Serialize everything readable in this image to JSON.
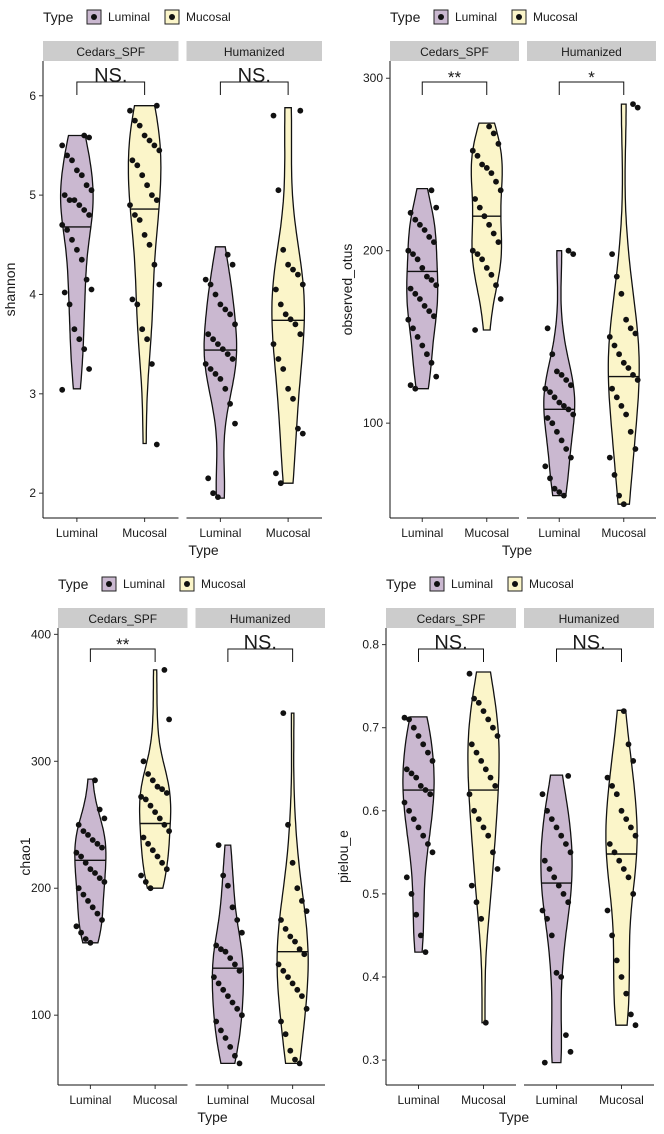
{
  "legend_title": "Type",
  "legend_items": [
    {
      "label": "Luminal",
      "color": "#cab8d0"
    },
    {
      "label": "Mucosal",
      "color": "#fbf5c9"
    }
  ],
  "x_axis_title": "Type",
  "panel_background": "#cccccc",
  "chart_data": [
    {
      "type": "violin",
      "ylabel": "shannon",
      "xlabel": "Type",
      "ylim": [
        1.75,
        6.35
      ],
      "yticks": [
        2,
        3,
        4,
        5,
        6
      ],
      "facets": [
        {
          "name": "Cedars_SPF",
          "annotation": "NS.",
          "groups": [
            {
              "category": "Luminal",
              "median": 4.68,
              "min": 3.05,
              "max": 5.6,
              "points": [
                3.04,
                3.25,
                3.45,
                3.55,
                3.65,
                3.9,
                4.02,
                4.05,
                4.15,
                4.35,
                4.45,
                4.55,
                4.65,
                4.7,
                4.8,
                4.85,
                4.9,
                4.95,
                4.95,
                5.0,
                5.05,
                5.1,
                5.2,
                5.25,
                5.35,
                5.4,
                5.5,
                5.58,
                5.6
              ]
            },
            {
              "category": "Mucosal",
              "median": 4.86,
              "min": 2.5,
              "max": 5.9,
              "points": [
                2.49,
                3.3,
                3.55,
                3.65,
                3.9,
                3.95,
                4.1,
                4.3,
                4.5,
                4.6,
                4.75,
                4.8,
                4.9,
                4.95,
                5.0,
                5.1,
                5.2,
                5.3,
                5.35,
                5.45,
                5.5,
                5.55,
                5.6,
                5.7,
                5.75,
                5.85,
                5.9
              ]
            }
          ]
        },
        {
          "name": "Humanized",
          "annotation": "NS.",
          "groups": [
            {
              "category": "Luminal",
              "median": 3.44,
              "min": 1.95,
              "max": 4.48,
              "points": [
                1.96,
                2.0,
                2.15,
                2.7,
                2.9,
                3.05,
                3.15,
                3.2,
                3.25,
                3.3,
                3.35,
                3.4,
                3.45,
                3.5,
                3.55,
                3.6,
                3.7,
                3.8,
                3.85,
                3.9,
                4.0,
                4.1,
                4.15,
                4.3,
                4.4
              ]
            },
            {
              "category": "Mucosal",
              "median": 3.74,
              "min": 2.1,
              "max": 5.88,
              "points": [
                2.1,
                2.2,
                2.6,
                2.65,
                2.95,
                3.05,
                3.25,
                3.35,
                3.5,
                3.6,
                3.7,
                3.75,
                3.8,
                3.9,
                4.05,
                4.1,
                4.2,
                4.25,
                4.3,
                4.45,
                5.05,
                5.8,
                5.85
              ]
            }
          ]
        }
      ]
    },
    {
      "type": "violin",
      "ylabel": "observed_otus",
      "xlabel": "Type",
      "ylim": [
        45,
        310
      ],
      "yticks": [
        100,
        200,
        300
      ],
      "facets": [
        {
          "name": "Cedars_SPF",
          "annotation": "**",
          "groups": [
            {
              "category": "Luminal",
              "median": 188,
              "min": 120,
              "max": 236,
              "points": [
                120,
                122,
                127,
                135,
                140,
                145,
                150,
                155,
                160,
                162,
                165,
                168,
                172,
                175,
                178,
                180,
                183,
                185,
                190,
                195,
                198,
                200,
                205,
                208,
                212,
                215,
                218,
                222,
                225,
                235
              ]
            },
            {
              "category": "Mucosal",
              "median": 220,
              "min": 154,
              "max": 274,
              "points": [
                154,
                172,
                180,
                186,
                190,
                195,
                198,
                200,
                205,
                210,
                215,
                220,
                225,
                230,
                235,
                240,
                245,
                248,
                250,
                255,
                258,
                262,
                268,
                272
              ]
            }
          ]
        },
        {
          "name": "Humanized",
          "annotation": "*",
          "groups": [
            {
              "category": "Luminal",
              "median": 108,
              "min": 58,
              "max": 200,
              "points": [
                58,
                60,
                62,
                68,
                75,
                80,
                85,
                90,
                95,
                100,
                103,
                105,
                108,
                110,
                112,
                115,
                118,
                120,
                122,
                125,
                128,
                130,
                140,
                155,
                198,
                200
              ]
            },
            {
              "category": "Mucosal",
              "median": 127,
              "min": 53,
              "max": 285,
              "points": [
                53,
                58,
                70,
                80,
                85,
                95,
                105,
                110,
                115,
                120,
                125,
                128,
                132,
                135,
                140,
                145,
                150,
                152,
                155,
                160,
                175,
                185,
                198,
                283,
                285
              ]
            }
          ]
        }
      ]
    },
    {
      "type": "violin",
      "ylabel": "chao1",
      "xlabel": "Type",
      "ylim": [
        45,
        405
      ],
      "yticks": [
        100,
        200,
        300,
        400
      ],
      "facets": [
        {
          "name": "Cedars_SPF",
          "annotation": "**",
          "groups": [
            {
              "category": "Luminal",
              "median": 222,
              "min": 157,
              "max": 286,
              "points": [
                157,
                160,
                165,
                170,
                175,
                180,
                185,
                190,
                195,
                200,
                205,
                208,
                212,
                215,
                220,
                225,
                228,
                232,
                235,
                238,
                242,
                245,
                250,
                255,
                262,
                285
              ]
            },
            {
              "category": "Mucosal",
              "median": 251,
              "min": 200,
              "max": 372,
              "points": [
                200,
                205,
                210,
                215,
                220,
                225,
                230,
                235,
                240,
                245,
                250,
                255,
                260,
                265,
                270,
                272,
                275,
                278,
                280,
                285,
                290,
                300,
                333,
                372
              ]
            }
          ]
        },
        {
          "name": "Humanized",
          "annotation": "NS.",
          "groups": [
            {
              "category": "Luminal",
              "median": 137,
              "min": 62,
              "max": 234,
              "points": [
                62,
                68,
                75,
                82,
                88,
                95,
                100,
                105,
                110,
                115,
                120,
                125,
                130,
                135,
                140,
                145,
                150,
                152,
                155,
                165,
                175,
                185,
                202,
                210,
                234
              ]
            },
            {
              "category": "Mucosal",
              "median": 150,
              "min": 62,
              "max": 338,
              "points": [
                62,
                65,
                72,
                85,
                95,
                105,
                115,
                120,
                125,
                130,
                135,
                140,
                148,
                152,
                158,
                162,
                168,
                175,
                182,
                190,
                200,
                220,
                250,
                338
              ]
            }
          ]
        }
      ]
    },
    {
      "type": "violin",
      "ylabel": "pielou_e",
      "xlabel": "Type",
      "ylim": [
        0.27,
        0.82
      ],
      "yticks": [
        0.3,
        0.4,
        0.5,
        0.6,
        0.7,
        0.8
      ],
      "facets": [
        {
          "name": "Cedars_SPF",
          "annotation": "NS.",
          "groups": [
            {
              "category": "Luminal",
              "median": 0.625,
              "min": 0.43,
              "max": 0.713,
              "points": [
                0.43,
                0.45,
                0.475,
                0.5,
                0.52,
                0.55,
                0.56,
                0.57,
                0.58,
                0.59,
                0.6,
                0.61,
                0.62,
                0.625,
                0.63,
                0.64,
                0.645,
                0.65,
                0.66,
                0.67,
                0.68,
                0.69,
                0.7,
                0.71,
                0.712
              ]
            },
            {
              "category": "Mucosal",
              "median": 0.625,
              "min": 0.345,
              "max": 0.767,
              "points": [
                0.345,
                0.47,
                0.49,
                0.51,
                0.53,
                0.55,
                0.57,
                0.58,
                0.59,
                0.6,
                0.62,
                0.63,
                0.64,
                0.65,
                0.66,
                0.67,
                0.68,
                0.69,
                0.7,
                0.71,
                0.72,
                0.73,
                0.735,
                0.765
              ]
            }
          ]
        },
        {
          "name": "Humanized",
          "annotation": "NS.",
          "groups": [
            {
              "category": "Luminal",
              "median": 0.513,
              "min": 0.297,
              "max": 0.643,
              "points": [
                0.297,
                0.31,
                0.33,
                0.4,
                0.405,
                0.45,
                0.47,
                0.48,
                0.49,
                0.5,
                0.51,
                0.52,
                0.53,
                0.54,
                0.55,
                0.56,
                0.57,
                0.58,
                0.59,
                0.6,
                0.62,
                0.642
              ]
            },
            {
              "category": "Mucosal",
              "median": 0.548,
              "min": 0.342,
              "max": 0.721,
              "points": [
                0.342,
                0.355,
                0.38,
                0.4,
                0.42,
                0.45,
                0.48,
                0.5,
                0.52,
                0.53,
                0.54,
                0.55,
                0.56,
                0.57,
                0.58,
                0.59,
                0.6,
                0.62,
                0.63,
                0.64,
                0.66,
                0.68,
                0.72
              ]
            }
          ]
        }
      ]
    }
  ]
}
